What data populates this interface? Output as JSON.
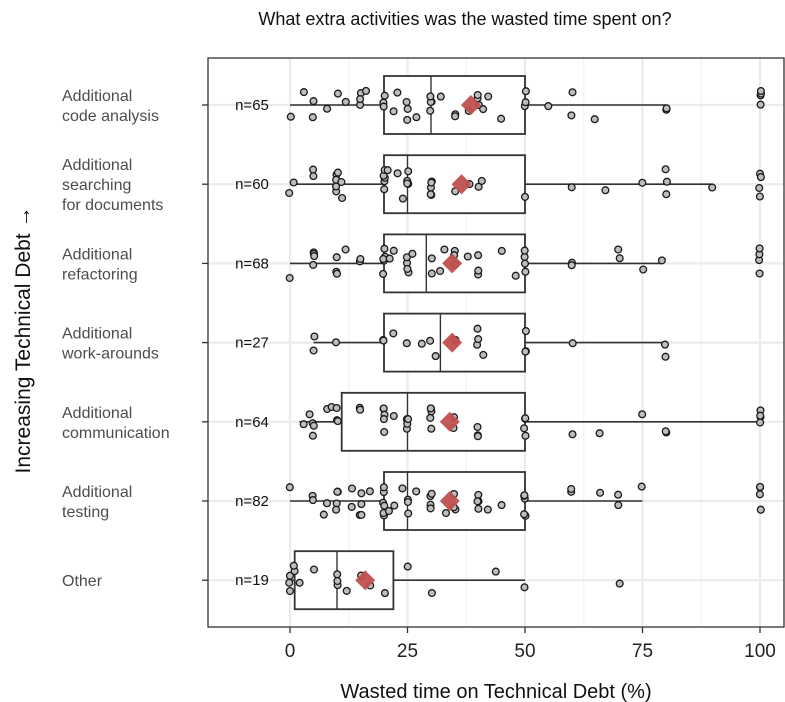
{
  "chart_data": {
    "type": "boxplot",
    "title": "What extra activities was the wasted time spent on?",
    "xlabel": "Wasted time on Technical Debt (%)",
    "ylabel": "Increasing Technical Debt →",
    "xlim": [
      -17,
      104
    ],
    "xticks": [
      0,
      25,
      50,
      75,
      100
    ],
    "grid": true,
    "colors": {
      "mean": "#c0504d",
      "box": "#333333",
      "point_fill": "#bdbdbd",
      "grid": "#ebebeb"
    },
    "categories": [
      {
        "label_lines": [
          "Additional",
          "code analysis"
        ],
        "n_label": "n=65",
        "min": 0,
        "q1": 20,
        "median": 30,
        "q3": 50,
        "max": 80,
        "mean": 38.5,
        "points": [
          0,
          3,
          5,
          5,
          8,
          10,
          12,
          15,
          15,
          15,
          16,
          20,
          20,
          20,
          22,
          23,
          25,
          25,
          25,
          27,
          30,
          30,
          30,
          30,
          30,
          32,
          35,
          35,
          38,
          40,
          40,
          40,
          41,
          42,
          45,
          50,
          50,
          50,
          55,
          60,
          60,
          65,
          80,
          80,
          100,
          100,
          100,
          100
        ]
      },
      {
        "label_lines": [
          "Additional",
          "searching",
          "for documents"
        ],
        "n_label": "n=60",
        "min": 0,
        "q1": 20,
        "median": 25,
        "q3": 50,
        "max": 90,
        "mean": 36.5,
        "points": [
          0,
          1,
          5,
          5,
          10,
          10,
          10,
          10,
          10,
          11,
          11,
          20,
          20,
          20,
          20,
          20,
          21,
          23,
          24,
          25,
          25,
          25,
          25,
          30,
          30,
          30,
          30,
          30,
          35,
          38,
          40,
          41,
          50,
          60,
          67,
          75,
          80,
          80,
          80,
          90,
          100,
          100,
          100,
          100
        ]
      },
      {
        "label_lines": [
          "Additional",
          "refactoring"
        ],
        "n_label": "n=68",
        "min": 0,
        "q1": 20,
        "median": 29,
        "q3": 50,
        "max": 79,
        "mean": 34.5,
        "points": [
          0,
          5,
          5,
          5,
          5,
          10,
          10,
          10,
          12,
          15,
          15,
          20,
          20,
          20,
          20,
          20,
          21,
          22,
          25,
          25,
          25,
          25,
          26,
          30,
          30,
          32,
          33,
          35,
          35,
          35,
          38,
          40,
          40,
          40,
          45,
          48,
          50,
          50,
          50,
          50,
          60,
          60,
          70,
          70,
          75,
          79,
          100,
          100,
          100,
          100
        ]
      },
      {
        "label_lines": [
          "Additional",
          "work-arounds"
        ],
        "n_label": "n=27",
        "min": 5,
        "q1": 20,
        "median": 32,
        "q3": 50,
        "max": 80,
        "mean": 34.5,
        "points": [
          5,
          5,
          10,
          20,
          20,
          22,
          25,
          28,
          30,
          31,
          35,
          40,
          40,
          40,
          41,
          50,
          50,
          50,
          60,
          80,
          80
        ]
      },
      {
        "label_lines": [
          "Additional",
          "communication"
        ],
        "n_label": "n=64",
        "min": 2,
        "q1": 11,
        "median": 25,
        "q3": 50,
        "max": 100,
        "mean": 34,
        "points": [
          3,
          4,
          5,
          5,
          5,
          8,
          9,
          10,
          10,
          10,
          15,
          15,
          20,
          20,
          20,
          20,
          20,
          22,
          25,
          25,
          25,
          25,
          30,
          30,
          30,
          30,
          30,
          35,
          35,
          40,
          40,
          40,
          50,
          50,
          50,
          50,
          60,
          66,
          75,
          80,
          80,
          100,
          100,
          100,
          100
        ]
      },
      {
        "label_lines": [
          "Additional",
          "testing"
        ],
        "n_label": "n=82",
        "min": 0,
        "q1": 20,
        "median": 25,
        "q3": 50,
        "max": 75,
        "mean": 34,
        "points": [
          0,
          5,
          5,
          7,
          8,
          10,
          10,
          10,
          10,
          13,
          13,
          15,
          15,
          15,
          15,
          17,
          20,
          20,
          20,
          20,
          20,
          20,
          21,
          22,
          24,
          25,
          25,
          25,
          27,
          30,
          30,
          30,
          30,
          33,
          35,
          35,
          35,
          40,
          40,
          40,
          40,
          42,
          45,
          50,
          50,
          50,
          50,
          50,
          60,
          60,
          66,
          70,
          70,
          75,
          100,
          100,
          100,
          100
        ]
      },
      {
        "label_lines": [
          "Other"
        ],
        "n_label": "n=19",
        "min": 0,
        "q1": 1,
        "median": 10,
        "q3": 22,
        "max": 50,
        "mean": 16,
        "points": [
          0,
          0,
          0,
          1,
          1,
          2,
          5,
          10,
          10,
          10,
          12,
          15,
          17,
          20,
          25,
          30,
          44,
          50,
          70
        ]
      }
    ]
  }
}
